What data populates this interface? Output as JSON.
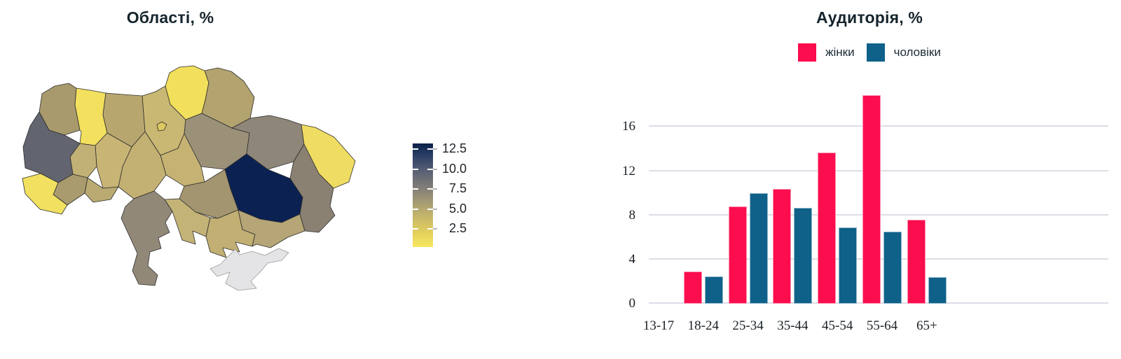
{
  "left_chart": {
    "title": "Області, %",
    "colorbar_labels": [
      "12.5",
      "10.0",
      "7.5",
      "5.0",
      "2.5"
    ],
    "colorbar_top_color": "#0b2048",
    "colorbar_bottom_color": "#f7e75f"
  },
  "right_chart": {
    "title": "Аудиторія, %"
  },
  "chart_data": [
    {
      "type": "heatmap",
      "subtype": "choropleth-map-ukraine-oblasts",
      "title": "Області, %",
      "colorbar_ticks": [
        2.5,
        5.0,
        7.5,
        10.0,
        12.5
      ],
      "color_scale": {
        "low_color": "#f7e75f",
        "high_color": "#0b2048",
        "low_value": 0.3,
        "high_value": 13.2
      },
      "regions": [
        {
          "id": "volyn",
          "color": "#a89a6d",
          "value_est": 5.1
        },
        {
          "id": "rivne",
          "color": "#f3e05e",
          "value_est": 1.3
        },
        {
          "id": "zhytomyr",
          "color": "#b7a76f",
          "value_est": 4.0
        },
        {
          "id": "kyiv-oblast",
          "color": "#c9b873",
          "value_est": 3.2
        },
        {
          "id": "kyiv-city",
          "color": "#ddc75f",
          "value_est": 2.2
        },
        {
          "id": "chernihiv",
          "color": "#f2df5c",
          "value_est": 1.2
        },
        {
          "id": "sumy",
          "color": "#b3a36f",
          "value_est": 4.4
        },
        {
          "id": "lviv",
          "color": "#62656f",
          "value_est": 8.3
        },
        {
          "id": "ternopil",
          "color": "#c2b175",
          "value_est": 3.6
        },
        {
          "id": "khmelnytskyi",
          "color": "#c8b576",
          "value_est": 3.3
        },
        {
          "id": "vinnytsia",
          "color": "#c3b173",
          "value_est": 3.5
        },
        {
          "id": "cherkasy",
          "color": "#c6b273",
          "value_est": 3.4
        },
        {
          "id": "poltava",
          "color": "#9b9179",
          "value_est": 6.1
        },
        {
          "id": "kharkiv",
          "color": "#8e8678",
          "value_est": 6.6
        },
        {
          "id": "luhansk",
          "color": "#efdc62",
          "value_est": 1.6
        },
        {
          "id": "zakarpattia",
          "color": "#f2e160",
          "value_est": 1.4
        },
        {
          "id": "ivano-frankivsk",
          "color": "#a99b6e",
          "value_est": 5.0
        },
        {
          "id": "chernivtsi",
          "color": "#b9aa72",
          "value_est": 4.2
        },
        {
          "id": "kirovohrad",
          "color": "#a2956f",
          "value_est": 5.3
        },
        {
          "id": "dnipropetrovsk",
          "color": "#0a2152",
          "value_est": 13.0
        },
        {
          "id": "donetsk",
          "color": "#8a8173",
          "value_est": 6.8
        },
        {
          "id": "odesa",
          "color": "#918878",
          "value_est": 6.5
        },
        {
          "id": "mykolaiv",
          "color": "#c4b377",
          "value_est": 3.3
        },
        {
          "id": "kherson",
          "color": "#c1af73",
          "value_est": 3.6
        },
        {
          "id": "zaporizhzhia",
          "color": "#b5a577",
          "value_est": 4.3
        },
        {
          "id": "crimea",
          "color": "#e4e4e6",
          "value_est": null
        }
      ]
    },
    {
      "type": "bar",
      "title": "Аудиторія, %",
      "categories": [
        "13-17",
        "18-24",
        "25-34",
        "35-44",
        "45-54",
        "55-64",
        "65+"
      ],
      "series": [
        {
          "name": "жінки",
          "color": "#fb0d4e",
          "values": [
            0,
            2.9,
            8.8,
            10.4,
            13.7,
            18.9,
            7.6
          ]
        },
        {
          "name": "чоловіки",
          "color": "#0f618a",
          "values": [
            0,
            2.5,
            10.0,
            8.7,
            6.9,
            6.5,
            2.4
          ]
        }
      ],
      "yticks": [
        0,
        4,
        8,
        12,
        16
      ],
      "ylim": [
        0,
        19.26
      ],
      "xlabel": "",
      "ylabel": "",
      "grid": true,
      "gridline_color": "#dddde7",
      "legend_position": "top"
    }
  ]
}
